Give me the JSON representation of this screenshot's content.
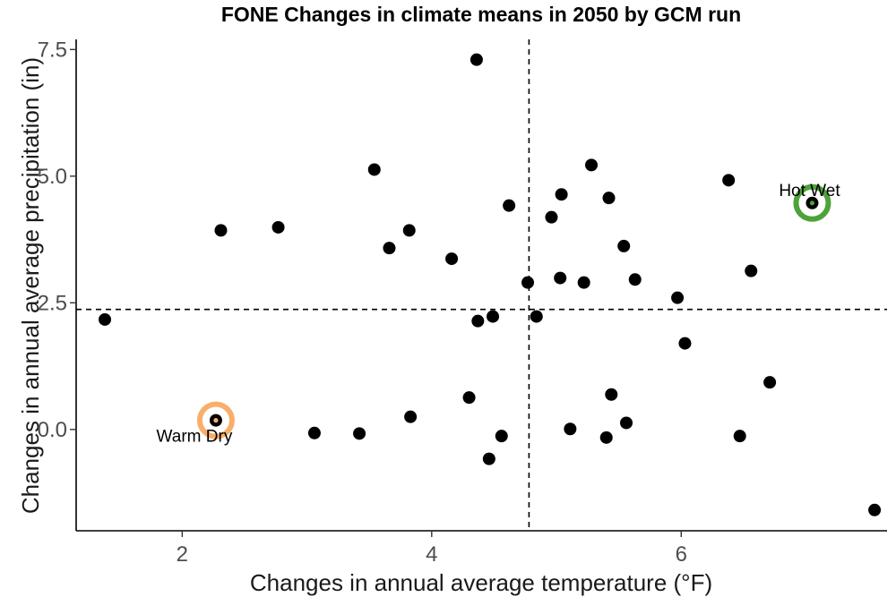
{
  "chart_data": {
    "type": "scatter",
    "title": "FONE Changes in climate means in 2050 by GCM run",
    "xlabel": "Changes in annual average temperature (°F)",
    "ylabel": "Changes in annual average precipitation (in)",
    "xlim": [
      1.15,
      7.65
    ],
    "ylim": [
      -2.0,
      7.7
    ],
    "xticks": [
      2,
      4,
      6
    ],
    "xtick_labels": [
      "2",
      "4",
      "6"
    ],
    "yticks": [
      0.0,
      2.5,
      5.0,
      7.5
    ],
    "ytick_labels": [
      "0.0",
      "2.5",
      "5.0",
      "7.5"
    ],
    "grid": false,
    "reference_lines": {
      "x": 4.78,
      "y": 2.37
    },
    "points": [
      {
        "x": 4.36,
        "y": 7.3
      },
      {
        "x": 3.54,
        "y": 5.13
      },
      {
        "x": 5.28,
        "y": 5.22
      },
      {
        "x": 6.38,
        "y": 4.92
      },
      {
        "x": 5.04,
        "y": 4.64
      },
      {
        "x": 5.42,
        "y": 4.57
      },
      {
        "x": 7.05,
        "y": 4.47
      },
      {
        "x": 4.62,
        "y": 4.42
      },
      {
        "x": 4.96,
        "y": 4.19
      },
      {
        "x": 2.31,
        "y": 3.93
      },
      {
        "x": 2.77,
        "y": 3.99
      },
      {
        "x": 3.82,
        "y": 3.93
      },
      {
        "x": 3.66,
        "y": 3.58
      },
      {
        "x": 5.54,
        "y": 3.62
      },
      {
        "x": 4.16,
        "y": 3.37
      },
      {
        "x": 6.56,
        "y": 3.13
      },
      {
        "x": 5.03,
        "y": 2.99
      },
      {
        "x": 5.63,
        "y": 2.96
      },
      {
        "x": 4.77,
        "y": 2.9
      },
      {
        "x": 5.22,
        "y": 2.9
      },
      {
        "x": 5.97,
        "y": 2.6
      },
      {
        "x": 4.84,
        "y": 2.23
      },
      {
        "x": 4.49,
        "y": 2.23
      },
      {
        "x": 4.37,
        "y": 2.14
      },
      {
        "x": 1.38,
        "y": 2.17
      },
      {
        "x": 6.03,
        "y": 1.7
      },
      {
        "x": 6.71,
        "y": 0.93
      },
      {
        "x": 5.44,
        "y": 0.69
      },
      {
        "x": 4.3,
        "y": 0.63
      },
      {
        "x": 3.83,
        "y": 0.25
      },
      {
        "x": 2.27,
        "y": 0.18
      },
      {
        "x": 5.56,
        "y": 0.13
      },
      {
        "x": 5.11,
        "y": 0.01
      },
      {
        "x": 3.06,
        "y": -0.07
      },
      {
        "x": 3.42,
        "y": -0.08
      },
      {
        "x": 4.56,
        "y": -0.13
      },
      {
        "x": 5.4,
        "y": -0.16
      },
      {
        "x": 6.47,
        "y": -0.13
      },
      {
        "x": 4.46,
        "y": -0.58
      },
      {
        "x": 7.55,
        "y": -1.59
      }
    ],
    "highlights": [
      {
        "label": "Hot Wet",
        "x": 7.05,
        "y": 4.47,
        "color": "#4DA33A",
        "label_position": "above"
      },
      {
        "label": "Warm Dry",
        "x": 2.27,
        "y": 0.18,
        "color": "#F8AF6B",
        "label_position": "below"
      }
    ]
  }
}
